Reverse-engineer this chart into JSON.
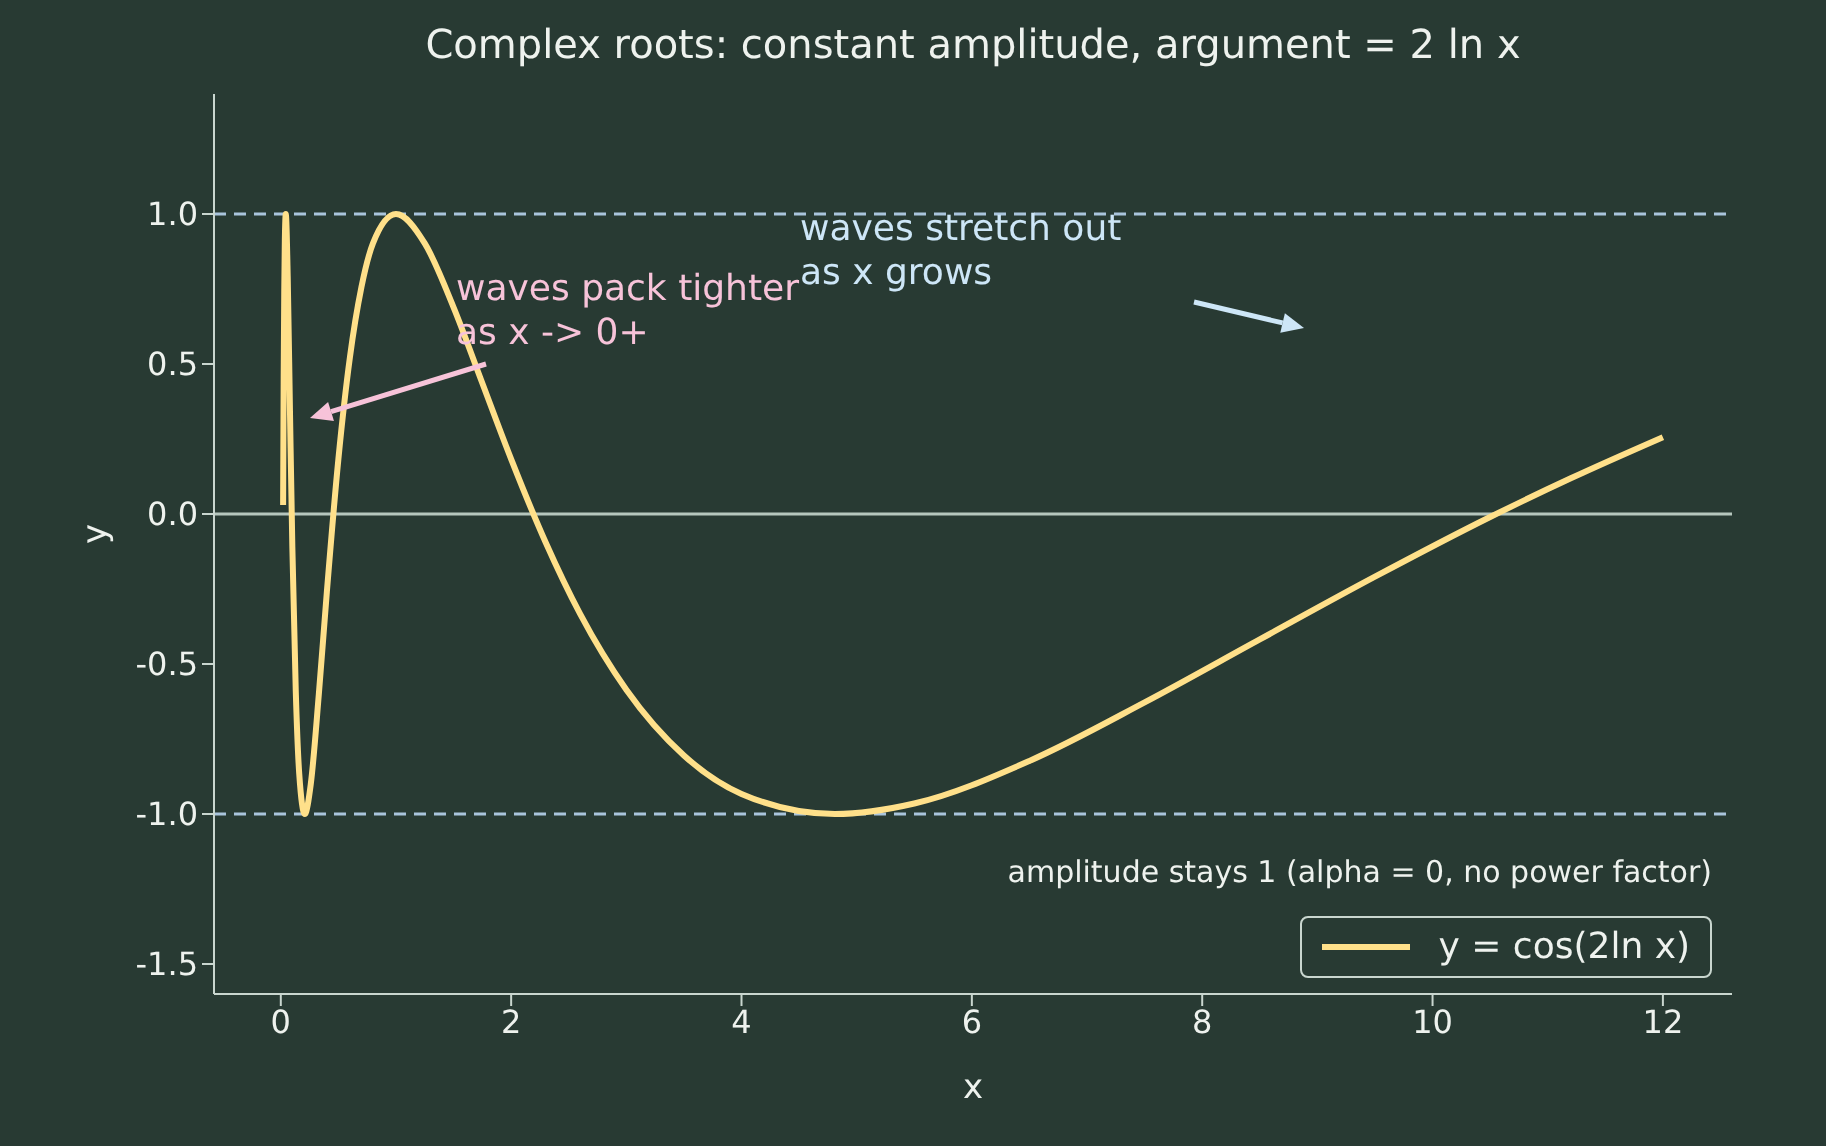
{
  "chart_data": {
    "type": "line",
    "title": "Complex roots: constant amplitude, argument = 2 ln x",
    "xlabel": "x",
    "ylabel": "y",
    "x": [
      0.02,
      0.025,
      0.03,
      0.035,
      0.0432,
      0.06,
      0.08,
      0.1,
      0.13,
      0.16,
      0.208,
      0.26,
      0.33,
      0.4,
      0.5,
      0.6,
      0.7,
      0.8,
      1,
      1.25,
      1.5,
      1.75,
      2,
      2.3,
      2.6,
      3,
      3.5,
      4,
      4.81,
      5.5,
      6.5,
      7.5,
      8.5,
      9.5,
      10.5,
      11.2,
      12
    ],
    "series": [
      {
        "name": "y = cos(2ln x)",
        "color": "#ffe08a",
        "values": [
          0.03,
          0.458,
          0.745,
          0.912,
          1,
          0.792,
          0.333,
          -0.107,
          -0.591,
          -0.866,
          -1,
          -0.901,
          -0.602,
          -0.259,
          0.183,
          0.522,
          0.756,
          0.902,
          1,
          0.902,
          0.689,
          0.436,
          0.183,
          -0.095,
          -0.334,
          -0.586,
          -0.805,
          -0.933,
          -1,
          -0.965,
          -0.823,
          -0.628,
          -0.418,
          -0.209,
          -0.01,
          0.119,
          0.256
        ]
      }
    ],
    "xlim": [
      -0.58,
      12.6
    ],
    "xticks": [
      0,
      2,
      4,
      6,
      8,
      10,
      12
    ],
    "ylim": [
      -1.6,
      1.4
    ],
    "yticks": [
      -1.5,
      {
        "value": -1,
        "label": "-1.0"
      },
      -0.5,
      {
        "value": 0,
        "label": "0.0"
      },
      0.5,
      {
        "value": 1,
        "label": "1.0"
      }
    ],
    "ref_lines": [
      {
        "axis": "y",
        "value": 1,
        "color": "#a9c4dc",
        "line_style": "dashed"
      },
      {
        "axis": "y",
        "value": -1,
        "color": "#a9c4dc",
        "line_style": "dashed"
      },
      {
        "axis": "y",
        "value": 0,
        "color": "#b5c6bd",
        "line_style": "solid"
      }
    ],
    "annotations": [
      "waves pack tighter\nas x -> 0+",
      "waves stretch out\nas x grows",
      "amplitude stays 1 (alpha = 0, no power factor)"
    ],
    "legend": "bottom right",
    "marker": "none",
    "line_style": "solid"
  }
}
